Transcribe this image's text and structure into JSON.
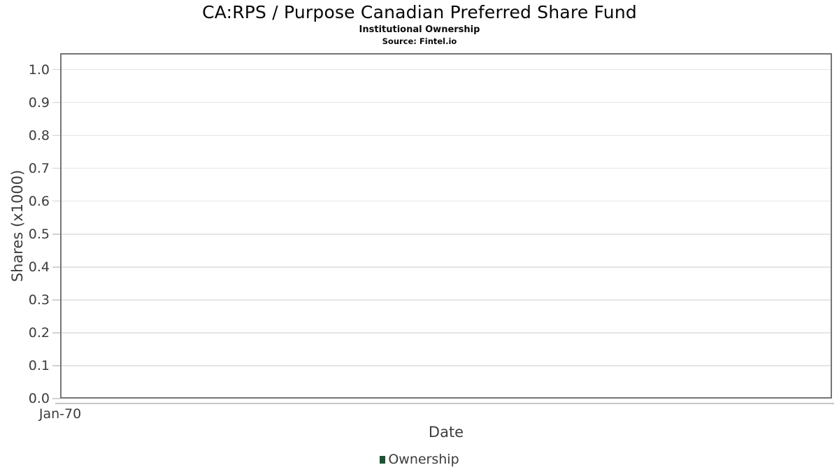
{
  "chart_data": {
    "type": "line",
    "title": "CA:RPS / Purpose Canadian Preferred Share Fund",
    "subtitle": "Institutional Ownership",
    "source": "Source: Fintel.io",
    "xlabel": "Date",
    "ylabel": "Shares (x1000)",
    "x_tick_labels": [
      "Jan-70"
    ],
    "y_ticks": [
      {
        "value": 0.0,
        "label": "0.0"
      },
      {
        "value": 0.1,
        "label": "0.1"
      },
      {
        "value": 0.2,
        "label": "0.2"
      },
      {
        "value": 0.3,
        "label": "0.3"
      },
      {
        "value": 0.4,
        "label": "0.4"
      },
      {
        "value": 0.5,
        "label": "0.5"
      },
      {
        "value": 0.6,
        "label": "0.6"
      },
      {
        "value": 0.7,
        "label": "0.7"
      },
      {
        "value": 0.8,
        "label": "0.8"
      },
      {
        "value": 0.9,
        "label": "0.9"
      },
      {
        "value": 1.0,
        "label": "1.0"
      }
    ],
    "ylim": [
      0,
      1.05
    ],
    "grid": "horizontal-only",
    "legend_position": "bottom-center",
    "series": [
      {
        "name": "Ownership",
        "color": "#1b5334",
        "x": [],
        "values": []
      }
    ]
  },
  "colors": {
    "accent_series_green": "#1b5334",
    "plot_border": "#757575",
    "gridline": "#e5e5e5",
    "axis_line": "#c6c6c6",
    "tick_label_text": "#3c3c3c",
    "axis_title_text": "#3d3d3d",
    "title_text": "#060606"
  }
}
